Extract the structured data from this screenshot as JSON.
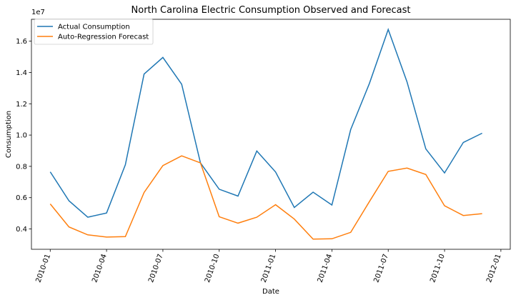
{
  "chart_data": {
    "type": "line",
    "title": "North Carolina Electric Consumption Observed and Forecast",
    "xlabel": "Date",
    "ylabel": "Consumption",
    "y_multiplier_label": "1e7",
    "x_ticks": [
      "2010-01",
      "2010-04",
      "2010-07",
      "2010-10",
      "2011-01",
      "2011-04",
      "2011-07",
      "2011-10",
      "2012-01"
    ],
    "y_ticks": [
      0.4,
      0.6,
      0.8,
      1.0,
      1.2,
      1.4,
      1.6
    ],
    "y_tick_labels": [
      "0.4",
      "0.6",
      "0.8",
      "1.0",
      "1.2",
      "1.4",
      "1.6"
    ],
    "ylim": [
      0.27,
      1.74
    ],
    "legend_position": "top-left",
    "grid": false,
    "x": [
      "2010-01",
      "2010-02",
      "2010-03",
      "2010-04",
      "2010-05",
      "2010-06",
      "2010-07",
      "2010-08",
      "2010-09",
      "2010-10",
      "2010-11",
      "2010-12",
      "2011-01",
      "2011-02",
      "2011-03",
      "2011-04",
      "2011-05",
      "2011-06",
      "2011-07",
      "2011-08",
      "2011-09",
      "2011-10",
      "2011-11",
      "2011-12"
    ],
    "series": [
      {
        "name": "Actual Consumption",
        "color": "#1f77b4",
        "values": [
          0.765,
          0.58,
          0.475,
          0.502,
          0.81,
          1.39,
          1.496,
          1.325,
          0.822,
          0.654,
          0.61,
          0.898,
          0.764,
          0.537,
          0.635,
          0.553,
          1.035,
          1.33,
          1.675,
          1.34,
          0.912,
          0.758,
          0.953,
          1.012
        ]
      },
      {
        "name": "Auto-Regression Forecast",
        "color": "#ff7f0e",
        "values": [
          0.56,
          0.413,
          0.362,
          0.348,
          0.351,
          0.633,
          0.805,
          0.867,
          0.822,
          0.478,
          0.437,
          0.475,
          0.555,
          0.463,
          0.335,
          0.337,
          0.378,
          0.575,
          0.768,
          0.789,
          0.748,
          0.548,
          0.486,
          0.498
        ]
      }
    ]
  }
}
